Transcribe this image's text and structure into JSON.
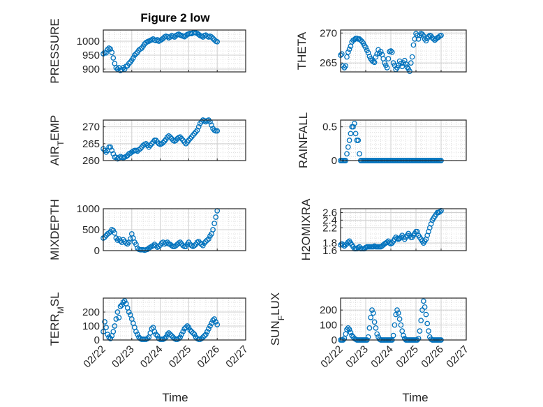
{
  "figure": {
    "title": "Figure 2 low",
    "marker_color": "#0072bd",
    "xlabel": "Time",
    "x_tick_labels": [
      "02/22",
      "02/23",
      "02/24",
      "02/25",
      "02/26",
      "02/27"
    ]
  },
  "chart_data": [
    {
      "type": "scatter",
      "ylabel": "PRESSURE",
      "ylim": [
        890,
        1040
      ],
      "yticks": [
        900,
        950,
        1000
      ],
      "xlim": [
        0,
        5
      ],
      "x": [
        0.0,
        0.05,
        0.1,
        0.15,
        0.2,
        0.25,
        0.3,
        0.35,
        0.4,
        0.45,
        0.5,
        0.55,
        0.6,
        0.65,
        0.7,
        0.75,
        0.8,
        0.85,
        0.9,
        0.95,
        1.0,
        1.05,
        1.1,
        1.15,
        1.2,
        1.25,
        1.3,
        1.35,
        1.4,
        1.45,
        1.5,
        1.55,
        1.6,
        1.65,
        1.7,
        1.75,
        1.8,
        1.85,
        1.9,
        1.95,
        2.0,
        2.05,
        2.1,
        2.15,
        2.2,
        2.25,
        2.3,
        2.35,
        2.4,
        2.45,
        2.5,
        2.55,
        2.6,
        2.65,
        2.7,
        2.75,
        2.8,
        2.85,
        2.9,
        2.95,
        3.0,
        3.05,
        3.1,
        3.15,
        3.2,
        3.25,
        3.3,
        3.35,
        3.4,
        3.45,
        3.5,
        3.55,
        3.6,
        3.65,
        3.7,
        3.75,
        3.8,
        3.85,
        3.9,
        3.95,
        4.0
      ],
      "y": [
        955,
        960,
        958,
        970,
        975,
        972,
        960,
        940,
        920,
        905,
        900,
        905,
        895,
        898,
        905,
        900,
        910,
        912,
        920,
        925,
        932,
        940,
        950,
        955,
        960,
        968,
        972,
        975,
        982,
        990,
        995,
        998,
        1000,
        1003,
        1005,
        1008,
        1004,
        1002,
        1005,
        1000,
        1003,
        1006,
        1010,
        1015,
        1018,
        1016,
        1012,
        1015,
        1020,
        1018,
        1015,
        1020,
        1023,
        1025,
        1022,
        1020,
        1018,
        1016,
        1020,
        1024,
        1026,
        1028,
        1027,
        1030,
        1031,
        1030,
        1028,
        1024,
        1020,
        1018,
        1015,
        1020,
        1022,
        1018,
        1015,
        1018,
        1015,
        1010,
        1005,
        1000,
        998
      ]
    },
    {
      "type": "scatter",
      "ylabel": "THETA",
      "ylim": [
        263.5,
        270.5
      ],
      "yticks": [
        265,
        270
      ],
      "xlim": [
        0,
        5
      ],
      "x": [
        0.0,
        0.05,
        0.1,
        0.15,
        0.2,
        0.25,
        0.3,
        0.35,
        0.4,
        0.45,
        0.5,
        0.55,
        0.6,
        0.65,
        0.7,
        0.75,
        0.8,
        0.85,
        0.9,
        0.95,
        1.0,
        1.05,
        1.1,
        1.15,
        1.2,
        1.25,
        1.3,
        1.35,
        1.4,
        1.45,
        1.5,
        1.55,
        1.6,
        1.65,
        1.7,
        1.75,
        1.8,
        1.85,
        1.9,
        1.95,
        2.0,
        2.05,
        2.1,
        2.15,
        2.2,
        2.25,
        2.3,
        2.35,
        2.4,
        2.45,
        2.5,
        2.55,
        2.6,
        2.65,
        2.7,
        2.75,
        2.8,
        2.85,
        2.9,
        2.95,
        3.0,
        3.05,
        3.1,
        3.15,
        3.2,
        3.25,
        3.3,
        3.35,
        3.4,
        3.45,
        3.5,
        3.55,
        3.6,
        3.65,
        3.7,
        3.75,
        3.8,
        3.85,
        3.9,
        3.95,
        4.0
      ],
      "y": [
        266.3,
        266.5,
        264.5,
        264.2,
        264.5,
        266.0,
        266.8,
        267.3,
        267.8,
        268.5,
        268.8,
        268.9,
        269.1,
        269.1,
        269.0,
        269.0,
        268.8,
        268.6,
        268.3,
        267.9,
        267.6,
        267.1,
        266.7,
        266.1,
        265.7,
        265.4,
        265.2,
        265.1,
        266.0,
        266.5,
        267.2,
        266.6,
        266.9,
        266.4,
        265.7,
        265.0,
        264.6,
        264.2,
        265.7,
        266.9,
        267.0,
        266.8,
        265.0,
        264.6,
        263.9,
        264.2,
        264.6,
        265.3,
        264.9,
        264.4,
        265.0,
        265.4,
        264.8,
        264.3,
        264.0,
        263.6,
        265.0,
        266.0,
        268.0,
        269.0,
        269.9,
        269.6,
        269.0,
        269.6,
        269.9,
        269.8,
        269.5,
        269.0,
        268.7,
        269.1,
        269.4,
        269.6,
        269.5,
        269.2,
        269.0,
        268.8,
        269.0,
        269.2,
        269.3,
        269.5,
        269.6
      ]
    },
    {
      "type": "scatter",
      "ylabel": "AIR_TEMP",
      "ylim": [
        260,
        272
      ],
      "yticks": [
        260,
        265,
        270
      ],
      "xlim": [
        0,
        5
      ],
      "x": [
        0.0,
        0.05,
        0.1,
        0.15,
        0.2,
        0.25,
        0.3,
        0.35,
        0.4,
        0.45,
        0.5,
        0.55,
        0.6,
        0.65,
        0.7,
        0.75,
        0.8,
        0.85,
        0.9,
        0.95,
        1.0,
        1.05,
        1.1,
        1.15,
        1.2,
        1.25,
        1.3,
        1.35,
        1.4,
        1.45,
        1.5,
        1.55,
        1.6,
        1.65,
        1.7,
        1.75,
        1.8,
        1.85,
        1.9,
        1.95,
        2.0,
        2.05,
        2.1,
        2.15,
        2.2,
        2.25,
        2.3,
        2.35,
        2.4,
        2.45,
        2.5,
        2.55,
        2.6,
        2.65,
        2.7,
        2.75,
        2.8,
        2.85,
        2.9,
        2.95,
        3.0,
        3.05,
        3.1,
        3.15,
        3.2,
        3.25,
        3.3,
        3.35,
        3.4,
        3.45,
        3.5,
        3.55,
        3.6,
        3.65,
        3.7,
        3.75,
        3.8,
        3.85,
        3.9,
        3.95,
        4.0
      ],
      "y": [
        263.5,
        263.0,
        262.5,
        263.0,
        264.0,
        264.0,
        263.0,
        262.0,
        261.0,
        261.0,
        260.5,
        260.8,
        261.2,
        261.0,
        260.8,
        261.0,
        261.2,
        261.5,
        262.0,
        262.2,
        262.5,
        262.8,
        263.0,
        263.0,
        262.8,
        263.2,
        263.5,
        264.0,
        264.5,
        264.8,
        265.0,
        264.5,
        264.0,
        264.5,
        265.0,
        265.5,
        266.0,
        266.0,
        265.5,
        265.0,
        264.8,
        265.0,
        265.3,
        265.8,
        266.3,
        267.0,
        267.3,
        267.0,
        266.5,
        266.0,
        265.8,
        266.0,
        266.5,
        266.8,
        267.0,
        266.5,
        266.0,
        265.5,
        265.0,
        265.5,
        266.0,
        266.5,
        267.0,
        267.5,
        268.0,
        268.5,
        269.0,
        270.0,
        271.0,
        271.5,
        272.0,
        271.8,
        271.5,
        271.8,
        272.0,
        271.5,
        270.5,
        269.5,
        269.0,
        268.8,
        268.8
      ]
    },
    {
      "type": "scatter",
      "ylabel": "RAINFALL",
      "ylim": [
        0,
        0.6
      ],
      "yticks": [
        0,
        0.5
      ],
      "xlim": [
        0,
        5
      ],
      "x": [
        0.0,
        0.05,
        0.1,
        0.15,
        0.2,
        0.25,
        0.3,
        0.35,
        0.4,
        0.45,
        0.5,
        0.55,
        0.6,
        0.65,
        0.7,
        0.75,
        0.8,
        0.85,
        0.9,
        0.95,
        1.0,
        1.05,
        1.1,
        1.15,
        1.2,
        1.25,
        1.3,
        1.35,
        1.4,
        1.45,
        1.5,
        1.55,
        1.6,
        1.65,
        1.7,
        1.75,
        1.8,
        1.85,
        1.9,
        1.95,
        2.0,
        2.05,
        2.1,
        2.15,
        2.2,
        2.25,
        2.3,
        2.35,
        2.4,
        2.45,
        2.5,
        2.55,
        2.6,
        2.65,
        2.7,
        2.75,
        2.8,
        2.85,
        2.9,
        2.95,
        3.0,
        3.05,
        3.1,
        3.15,
        3.2,
        3.25,
        3.3,
        3.35,
        3.4,
        3.45,
        3.5,
        3.55,
        3.6,
        3.65,
        3.7,
        3.75,
        3.8,
        3.85,
        3.9,
        3.95,
        4.0
      ],
      "y": [
        0,
        0,
        0,
        0,
        0,
        0.1,
        0.2,
        0.3,
        0.4,
        0.5,
        0.5,
        0.55,
        0.4,
        0.3,
        0.3,
        0.1,
        0,
        0,
        0,
        0,
        0,
        0,
        0,
        0,
        0,
        0,
        0,
        0,
        0,
        0,
        0,
        0,
        0,
        0,
        0,
        0,
        0,
        0,
        0,
        0,
        0,
        0,
        0,
        0,
        0,
        0,
        0,
        0,
        0,
        0,
        0,
        0,
        0,
        0,
        0,
        0,
        0,
        0,
        0,
        0,
        0,
        0,
        0,
        0,
        0,
        0,
        0,
        0,
        0,
        0,
        0,
        0,
        0,
        0,
        0,
        0,
        0,
        0,
        0,
        0,
        0
      ]
    },
    {
      "type": "scatter",
      "ylabel": "MIXDEPTH",
      "ylim": [
        0,
        1000
      ],
      "yticks": [
        0,
        500,
        1000
      ],
      "xlim": [
        0,
        5
      ],
      "x": [
        0.0,
        0.05,
        0.1,
        0.15,
        0.2,
        0.25,
        0.3,
        0.35,
        0.4,
        0.45,
        0.5,
        0.55,
        0.6,
        0.65,
        0.7,
        0.75,
        0.8,
        0.85,
        0.9,
        0.95,
        1.0,
        1.05,
        1.1,
        1.15,
        1.2,
        1.25,
        1.3,
        1.35,
        1.4,
        1.45,
        1.5,
        1.55,
        1.6,
        1.65,
        1.7,
        1.75,
        1.8,
        1.85,
        1.9,
        1.95,
        2.0,
        2.05,
        2.1,
        2.15,
        2.2,
        2.25,
        2.3,
        2.35,
        2.4,
        2.45,
        2.5,
        2.55,
        2.6,
        2.65,
        2.7,
        2.75,
        2.8,
        2.85,
        2.9,
        2.95,
        3.0,
        3.05,
        3.1,
        3.15,
        3.2,
        3.25,
        3.3,
        3.35,
        3.4,
        3.45,
        3.5,
        3.55,
        3.6,
        3.65,
        3.7,
        3.75,
        3.8,
        3.85,
        3.9,
        3.95,
        4.0
      ],
      "y": [
        300,
        320,
        360,
        400,
        420,
        450,
        500,
        480,
        420,
        300,
        250,
        280,
        230,
        200,
        260,
        220,
        180,
        160,
        200,
        280,
        400,
        300,
        200,
        150,
        60,
        30,
        20,
        20,
        20,
        10,
        20,
        30,
        60,
        80,
        100,
        120,
        150,
        120,
        80,
        100,
        130,
        180,
        200,
        160,
        180,
        200,
        160,
        150,
        120,
        100,
        100,
        120,
        150,
        180,
        200,
        160,
        120,
        100,
        100,
        150,
        200,
        150,
        120,
        100,
        120,
        150,
        200,
        220,
        180,
        150,
        120,
        180,
        220,
        250,
        280,
        350,
        400,
        500,
        650,
        800,
        950
      ]
    },
    {
      "type": "scatter",
      "ylabel": "H2OMIXRA",
      "ylim": [
        1.6,
        2.7
      ],
      "yticks": [
        1.6,
        1.8,
        2.2,
        2.4,
        2.6
      ],
      "xlim": [
        0,
        5
      ],
      "x": [
        0.0,
        0.05,
        0.1,
        0.15,
        0.2,
        0.25,
        0.3,
        0.35,
        0.4,
        0.45,
        0.5,
        0.55,
        0.6,
        0.65,
        0.7,
        0.75,
        0.8,
        0.85,
        0.9,
        0.95,
        1.0,
        1.05,
        1.1,
        1.15,
        1.2,
        1.25,
        1.3,
        1.35,
        1.4,
        1.45,
        1.5,
        1.55,
        1.6,
        1.65,
        1.7,
        1.75,
        1.8,
        1.85,
        1.9,
        1.95,
        2.0,
        2.05,
        2.1,
        2.15,
        2.2,
        2.25,
        2.3,
        2.35,
        2.4,
        2.45,
        2.5,
        2.55,
        2.6,
        2.65,
        2.7,
        2.75,
        2.8,
        2.85,
        2.9,
        2.95,
        3.0,
        3.05,
        3.1,
        3.15,
        3.2,
        3.25,
        3.3,
        3.35,
        3.4,
        3.45,
        3.5,
        3.55,
        3.6,
        3.65,
        3.7,
        3.75,
        3.8,
        3.85,
        3.9,
        3.95,
        4.0
      ],
      "y": [
        1.75,
        1.78,
        1.75,
        1.72,
        1.75,
        1.78,
        1.82,
        1.85,
        1.8,
        1.75,
        1.7,
        1.65,
        1.65,
        1.65,
        1.68,
        1.7,
        1.65,
        1.65,
        1.65,
        1.65,
        1.68,
        1.7,
        1.7,
        1.7,
        1.7,
        1.7,
        1.7,
        1.72,
        1.7,
        1.7,
        1.7,
        1.7,
        1.7,
        1.72,
        1.75,
        1.78,
        1.8,
        1.82,
        1.85,
        1.8,
        1.78,
        1.8,
        1.85,
        1.9,
        1.95,
        1.92,
        1.9,
        1.92,
        1.95,
        2.0,
        1.95,
        1.9,
        1.95,
        2.0,
        2.05,
        2.0,
        1.95,
        1.95,
        2.0,
        2.05,
        2.1,
        2.1,
        2.0,
        1.95,
        1.9,
        1.85,
        1.8,
        1.85,
        1.9,
        2.0,
        2.1,
        2.2,
        2.3,
        2.4,
        2.45,
        2.5,
        2.55,
        2.6,
        2.6,
        2.62,
        2.65
      ]
    },
    {
      "type": "scatter",
      "ylabel": "TERR_MSL",
      "ylim": [
        0,
        300
      ],
      "yticks": [
        0,
        100,
        200
      ],
      "xlim": [
        0,
        5
      ],
      "x": [
        0.0,
        0.05,
        0.1,
        0.15,
        0.2,
        0.25,
        0.3,
        0.35,
        0.4,
        0.45,
        0.5,
        0.55,
        0.6,
        0.65,
        0.7,
        0.75,
        0.8,
        0.85,
        0.9,
        0.95,
        1.0,
        1.05,
        1.1,
        1.15,
        1.2,
        1.25,
        1.3,
        1.35,
        1.4,
        1.45,
        1.5,
        1.55,
        1.6,
        1.65,
        1.7,
        1.75,
        1.8,
        1.85,
        1.9,
        1.95,
        2.0,
        2.05,
        2.1,
        2.15,
        2.2,
        2.25,
        2.3,
        2.35,
        2.4,
        2.45,
        2.5,
        2.55,
        2.6,
        2.65,
        2.7,
        2.75,
        2.8,
        2.85,
        2.9,
        2.95,
        3.0,
        3.05,
        3.1,
        3.15,
        3.2,
        3.25,
        3.3,
        3.35,
        3.4,
        3.45,
        3.5,
        3.55,
        3.6,
        3.65,
        3.7,
        3.75,
        3.8,
        3.85,
        3.9,
        3.95,
        4.0
      ],
      "y": [
        60,
        130,
        90,
        40,
        20,
        10,
        30,
        60,
        100,
        150,
        200,
        160,
        240,
        250,
        270,
        280,
        260,
        230,
        200,
        180,
        150,
        120,
        90,
        60,
        40,
        20,
        10,
        5,
        5,
        5,
        5,
        10,
        20,
        50,
        80,
        90,
        60,
        40,
        30,
        10,
        5,
        5,
        5,
        10,
        20,
        40,
        50,
        40,
        30,
        20,
        10,
        5,
        5,
        10,
        20,
        40,
        60,
        80,
        90,
        100,
        90,
        70,
        60,
        50,
        40,
        20,
        10,
        5,
        5,
        10,
        20,
        30,
        40,
        60,
        80,
        100,
        120,
        140,
        150,
        130,
        110
      ]
    },
    {
      "type": "scatter",
      "ylabel": "SUN_FLUX",
      "ylim": [
        0,
        280
      ],
      "yticks": [
        0,
        100,
        200
      ],
      "xlim": [
        0,
        5
      ],
      "x": [
        0.0,
        0.05,
        0.1,
        0.15,
        0.2,
        0.25,
        0.3,
        0.35,
        0.4,
        0.45,
        0.5,
        0.55,
        0.6,
        0.65,
        0.7,
        0.75,
        0.8,
        0.85,
        0.9,
        0.95,
        1.0,
        1.05,
        1.1,
        1.15,
        1.2,
        1.25,
        1.3,
        1.35,
        1.4,
        1.45,
        1.5,
        1.55,
        1.6,
        1.65,
        1.7,
        1.75,
        1.8,
        1.85,
        1.9,
        1.95,
        2.0,
        2.05,
        2.1,
        2.15,
        2.2,
        2.25,
        2.3,
        2.35,
        2.4,
        2.45,
        2.5,
        2.55,
        2.6,
        2.65,
        2.7,
        2.75,
        2.8,
        2.85,
        2.9,
        2.95,
        3.0,
        3.05,
        3.1,
        3.15,
        3.2,
        3.25,
        3.3,
        3.35,
        3.4,
        3.45,
        3.5,
        3.55,
        3.6,
        3.65,
        3.7,
        3.75,
        3.8,
        3.85,
        3.9,
        3.95,
        4.0
      ],
      "y": [
        0,
        0,
        0,
        10,
        40,
        70,
        80,
        70,
        50,
        30,
        20,
        10,
        5,
        0,
        0,
        0,
        0,
        0,
        0,
        0,
        0,
        0,
        20,
        80,
        150,
        200,
        180,
        120,
        80,
        40,
        20,
        5,
        0,
        0,
        0,
        0,
        0,
        0,
        0,
        0,
        0,
        0,
        30,
        100,
        170,
        200,
        180,
        140,
        100,
        60,
        30,
        10,
        0,
        0,
        0,
        0,
        0,
        0,
        0,
        0,
        0,
        0,
        10,
        60,
        130,
        200,
        260,
        220,
        170,
        110,
        60,
        20,
        5,
        0,
        0,
        0,
        0,
        0,
        0,
        0,
        0
      ]
    }
  ]
}
